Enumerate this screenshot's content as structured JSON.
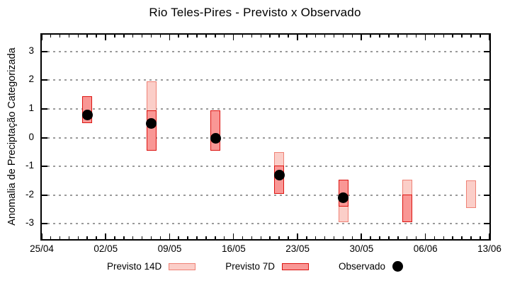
{
  "title": "Rio Teles-Pires - Previsto x Observado",
  "colors": {
    "p14_fill": "#fbcec8",
    "p14_border": "#ef8175",
    "p7_fill": "#f99795",
    "p7_border": "#dc1410",
    "obs": "#000000",
    "grid": "#9a9a9a",
    "frame": "#000000"
  },
  "legend": {
    "items": [
      {
        "label": "Previsto 14D",
        "swatch": "light-pink-box"
      },
      {
        "label": "Previsto 7D",
        "swatch": "red-box"
      },
      {
        "label": "Observado",
        "swatch": "black-dot"
      }
    ]
  },
  "chart_data": {
    "type": "bar",
    "subtype": "range-bars-with-scatter",
    "title": "Rio Teles-Pires - Previsto x Observado",
    "xlabel": "",
    "ylabel": "Anomalia de Preciptação Categorizada",
    "x_tick_labels": [
      "25/04",
      "02/05",
      "09/05",
      "16/05",
      "23/05",
      "30/05",
      "06/06",
      "13/06"
    ],
    "x_tick_interval_days": 7,
    "x_days": 49,
    "y_ticks": [
      3,
      2,
      1,
      0,
      -1,
      -2,
      -3
    ],
    "ylim": [
      -3.53,
      3.58
    ],
    "grid": "horizontal-dotted",
    "legend_position": "below-plot",
    "series": [
      {
        "name": "Previsto 14D",
        "type": "range_bar",
        "color_key": "p14",
        "points": [
          {
            "date": "07/05",
            "day": 12,
            "low": -0.45,
            "high": 1.95
          },
          {
            "date": "21/05",
            "day": 26,
            "low": -1.95,
            "high": -0.5
          },
          {
            "date": "28/05",
            "day": 33,
            "low": -2.95,
            "high": -1.47
          },
          {
            "date": "04/06",
            "day": 40,
            "low": -2.94,
            "high": -1.47
          },
          {
            "date": "11/06",
            "day": 47,
            "low": -2.45,
            "high": -1.5
          }
        ]
      },
      {
        "name": "Previsto 7D",
        "type": "range_bar",
        "color_key": "p7",
        "points": [
          {
            "date": "30/04",
            "day": 5,
            "low": 0.5,
            "high": 1.45
          },
          {
            "date": "07/05",
            "day": 12,
            "low": -0.45,
            "high": 0.95
          },
          {
            "date": "14/05",
            "day": 19,
            "low": -0.45,
            "high": 0.95
          },
          {
            "date": "21/05",
            "day": 26,
            "low": -1.95,
            "high": -0.97
          },
          {
            "date": "28/05",
            "day": 33,
            "low": -2.4,
            "high": -1.47
          },
          {
            "date": "04/06",
            "day": 40,
            "low": -2.94,
            "high": -1.97
          }
        ]
      },
      {
        "name": "Observado",
        "type": "scatter",
        "color_key": "obs",
        "points": [
          {
            "date": "30/04",
            "day": 5,
            "value": 0.78
          },
          {
            "date": "07/05",
            "day": 12,
            "value": 0.5
          },
          {
            "date": "14/05",
            "day": 19,
            "value": -0.02
          },
          {
            "date": "21/05",
            "day": 26,
            "value": -1.3
          },
          {
            "date": "28/05",
            "day": 33,
            "value": -2.08
          }
        ]
      }
    ]
  }
}
